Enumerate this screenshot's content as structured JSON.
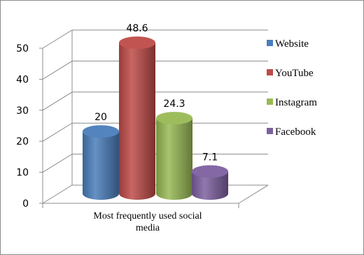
{
  "chart_data": {
    "type": "bar",
    "title": "",
    "xlabel": "",
    "ylabel": "",
    "categories": [
      "Most frequently used social media"
    ],
    "category_lines": [
      "Most frequently used social",
      "media"
    ],
    "ylim": [
      0,
      50
    ],
    "yticks": [
      0,
      10,
      20,
      30,
      40,
      50
    ],
    "grid": true,
    "legend_position": "right",
    "series": [
      {
        "name": "Website",
        "values": [
          20
        ],
        "label": "20",
        "color": "#4a7ebb"
      },
      {
        "name": "YouTube",
        "values": [
          48.6
        ],
        "label": "48.6",
        "color": "#be4b48"
      },
      {
        "name": "Instagram",
        "values": [
          24.3
        ],
        "label": "24.3",
        "color": "#98b954"
      },
      {
        "name": "Facebook",
        "values": [
          7.1
        ],
        "label": "7.1",
        "color": "#7d60a0"
      }
    ]
  }
}
